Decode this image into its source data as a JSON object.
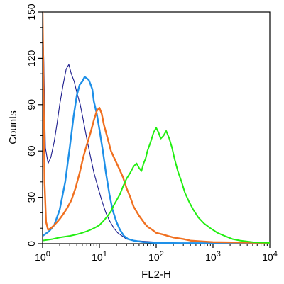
{
  "chart_data": {
    "type": "line",
    "xlabel": "FL2-H",
    "ylabel": "Counts",
    "x_scale": "log",
    "xlim": [
      1,
      10000
    ],
    "ylim": [
      0,
      150
    ],
    "x_ticks": [
      {
        "value": 1,
        "base": "10",
        "exp": "0"
      },
      {
        "value": 10,
        "base": "10",
        "exp": "1"
      },
      {
        "value": 100,
        "base": "10",
        "exp": "2"
      },
      {
        "value": 1000,
        "base": "10",
        "exp": "3"
      },
      {
        "value": 10000,
        "base": "10",
        "exp": "4"
      }
    ],
    "y_ticks": [
      "0",
      "30",
      "60",
      "90",
      "120",
      "150"
    ],
    "grid": false,
    "legend": "none",
    "series": [
      {
        "color": "#1a1a8c",
        "x": [
          1.0,
          1.05,
          1.12,
          1.25,
          1.4,
          1.6,
          1.8,
          2.0,
          2.3,
          2.6,
          2.9,
          3.2,
          3.6,
          4.0,
          4.6,
          5.2,
          6.0,
          7.0,
          8.0,
          9.5,
          11,
          13,
          15,
          18,
          21,
          25,
          30,
          40,
          60,
          100,
          200,
          1000,
          10000
        ],
        "values": [
          150,
          118,
          62,
          52,
          56,
          66,
          78,
          90,
          103,
          113,
          116,
          110,
          105,
          98,
          90,
          80,
          68,
          56,
          46,
          36,
          28,
          20,
          15,
          10,
          7,
          5,
          3,
          2,
          1.5,
          1,
          0.5,
          0.3,
          0.3
        ]
      },
      {
        "color": "#1e90e8",
        "x": [
          1.0,
          1.3,
          1.6,
          2.0,
          2.5,
          3.0,
          3.5,
          4.0,
          4.5,
          5.0,
          5.5,
          6.0,
          6.5,
          7.0,
          7.5,
          8.0,
          9.0,
          10,
          11.5,
          13,
          15,
          17,
          20,
          23,
          27,
          32,
          40,
          60,
          100,
          300,
          10000
        ],
        "values": [
          5,
          8,
          12,
          22,
          40,
          62,
          82,
          96,
          103,
          105,
          108,
          107,
          106,
          103,
          100,
          92,
          84,
          74,
          60,
          46,
          32,
          22,
          14,
          9,
          5,
          3,
          2,
          1,
          0.5,
          0.3,
          0.3
        ]
      },
      {
        "color": "#f07020",
        "x": [
          1.0,
          1.04,
          1.08,
          1.15,
          1.25,
          1.4,
          1.6,
          1.8,
          2.0,
          2.3,
          2.7,
          3.2,
          3.8,
          4.5,
          5.2,
          6.0,
          7.0,
          8.0,
          9.0,
          10,
          11,
          12,
          14,
          16,
          19,
          22,
          26,
          30,
          35,
          40,
          50,
          60,
          70,
          85,
          100,
          130,
          160,
          200,
          300,
          400,
          600,
          1000,
          10000
        ],
        "values": [
          150,
          100,
          40,
          14,
          9,
          10,
          12,
          14,
          16,
          19,
          23,
          28,
          36,
          46,
          56,
          64,
          72,
          80,
          86,
          88,
          84,
          77,
          68,
          60,
          54,
          49,
          43,
          36,
          30,
          24,
          18,
          14,
          11,
          9,
          7,
          6,
          5,
          4,
          3,
          2,
          1.5,
          1,
          0.5
        ]
      },
      {
        "color": "#22ee11",
        "x": [
          1.0,
          1.5,
          2.0,
          3.0,
          4.0,
          5.0,
          6.0,
          7.0,
          8.0,
          9.0,
          10,
          12,
          14,
          16,
          18,
          20,
          23,
          26,
          30,
          35,
          40,
          45,
          50,
          55,
          60,
          65,
          70,
          80,
          90,
          100,
          110,
          120,
          135,
          150,
          170,
          190,
          210,
          240,
          280,
          320,
          380,
          450,
          550,
          700,
          900,
          1200,
          1600,
          2200,
          3000,
          5000,
          10000
        ],
        "values": [
          2,
          3,
          4,
          5,
          6,
          7,
          8,
          9,
          10,
          11,
          12,
          15,
          18,
          21,
          25,
          28,
          32,
          37,
          42,
          46,
          50,
          52,
          49,
          47,
          52,
          55,
          60,
          66,
          72,
          75,
          72,
          68,
          70,
          73,
          68,
          62,
          55,
          47,
          40,
          33,
          27,
          22,
          17,
          13,
          10,
          7,
          5,
          3,
          2,
          1,
          0.5
        ]
      }
    ]
  }
}
